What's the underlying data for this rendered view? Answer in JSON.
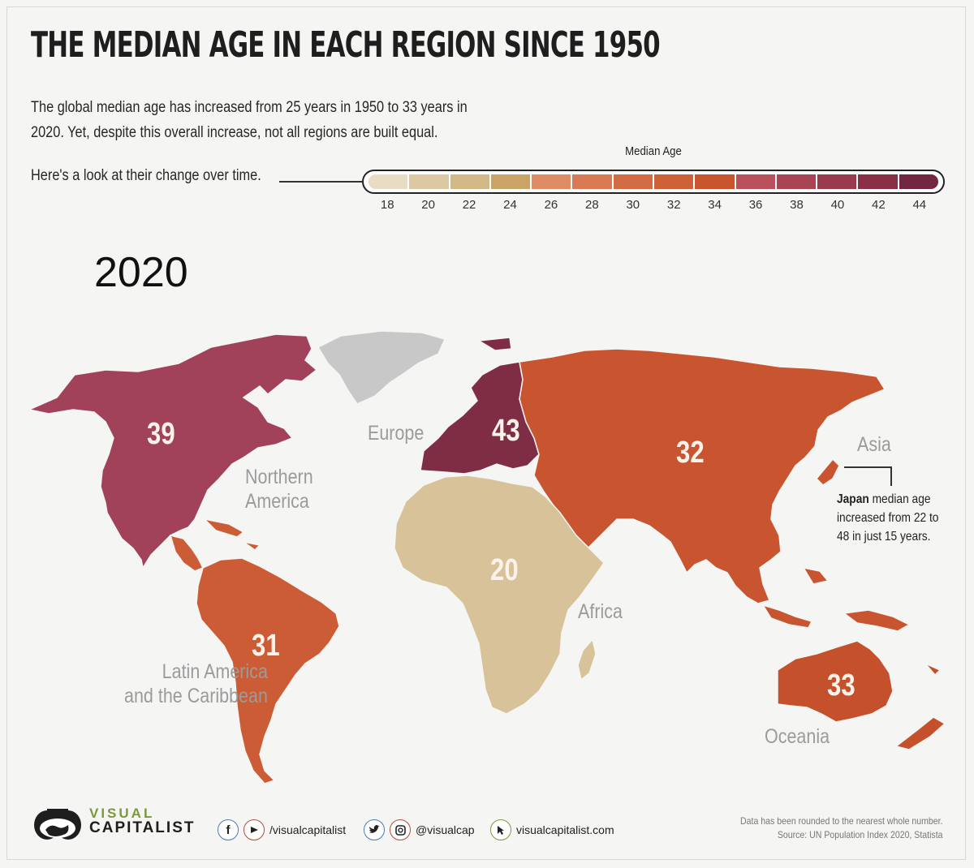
{
  "title": "THE MEDIAN AGE IN EACH REGION SINCE 1950",
  "subtitle": "The global median age has increased from 25 years in 1950 to 33 years in 2020. Yet, despite this overall increase, not all regions are built equal.",
  "look_line": "Here's a look at their change over time.",
  "legend": {
    "title": "Median Age",
    "ticks": [
      "18",
      "20",
      "22",
      "24",
      "26",
      "28",
      "30",
      "32",
      "34",
      "36",
      "38",
      "40",
      "42",
      "44"
    ],
    "colors": [
      "#e8dcc4",
      "#dcc9a4",
      "#d2b886",
      "#c9a466",
      "#de8c66",
      "#d97a55",
      "#d26c45",
      "#cd6238",
      "#c8552d",
      "#b9505c",
      "#a84454",
      "#9a3a4e",
      "#8a3046",
      "#732640"
    ]
  },
  "year": "2020",
  "regions": {
    "northern_america": {
      "label": "Northern\nAmerica",
      "label_line1": "Northern",
      "label_line2": "America",
      "value": "39",
      "color": "#a2425a"
    },
    "europe": {
      "label": "Europe",
      "value": "43",
      "color": "#7f2c45"
    },
    "asia": {
      "label": "Asia",
      "value": "32",
      "color": "#c85530"
    },
    "africa": {
      "label": "Africa",
      "value": "20",
      "color": "#d8c29a"
    },
    "latin_america": {
      "label_line1": "Latin America",
      "label_line2": "and the Caribbean",
      "value": "31",
      "color": "#cc5c35"
    },
    "oceania": {
      "label": "Oceania",
      "value": "33",
      "color": "#c4502c"
    },
    "greenland": {
      "color": "#c8c8c8"
    }
  },
  "japan_note": {
    "bold": "Japan",
    "text": " median age increased from 22 to 48 in just 15 years."
  },
  "brand": {
    "line1": "VISUAL",
    "line2": "CAPITALIST"
  },
  "social": {
    "handle1": "/visualcapitalist",
    "handle2": "@visualcap",
    "site": "visualcapitalist.com"
  },
  "footnote": {
    "line1": "Data has been rounded to the nearest whole number.",
    "line2": "Source: UN Population Index 2020, Statista"
  }
}
